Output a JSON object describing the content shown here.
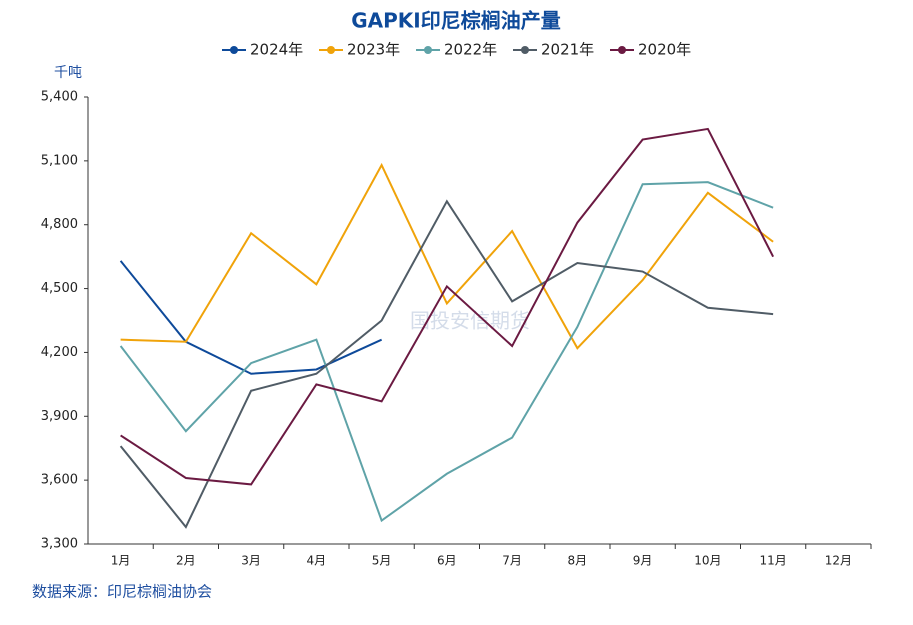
{
  "chart_data": {
    "type": "line",
    "title": "GAPKI印尼棕榈油产量",
    "y_unit": "千吨",
    "source": "数据来源：印尼棕榈油协会",
    "watermark": "国投安信期货",
    "categories": [
      "1月",
      "2月",
      "3月",
      "4月",
      "5月",
      "6月",
      "7月",
      "8月",
      "9月",
      "10月",
      "11月",
      "12月"
    ],
    "series": [
      {
        "name": "2024年",
        "color": "#0e4a9a",
        "values": [
          4630,
          4250,
          4100,
          4120,
          4260,
          null,
          null,
          null,
          null,
          null,
          null,
          null
        ]
      },
      {
        "name": "2023年",
        "color": "#f0a30a",
        "values": [
          4260,
          4250,
          4760,
          4520,
          5080,
          4430,
          4770,
          4220,
          4540,
          4950,
          4720,
          null
        ]
      },
      {
        "name": "2022年",
        "color": "#5fa3a8",
        "values": [
          4230,
          3830,
          4150,
          4260,
          3410,
          3630,
          3800,
          4320,
          4990,
          5000,
          4880,
          null
        ]
      },
      {
        "name": "2021年",
        "color": "#505c66",
        "values": [
          3760,
          3380,
          4020,
          4100,
          4350,
          4910,
          4440,
          4620,
          4580,
          4410,
          4380,
          null
        ]
      },
      {
        "name": "2020年",
        "color": "#6b1a42",
        "values": [
          3810,
          3610,
          3580,
          4050,
          3970,
          4510,
          4230,
          4810,
          5200,
          5250,
          4650,
          null
        ]
      }
    ],
    "ylim": [
      3300,
      5400
    ],
    "yticks": [
      {
        "value": 3300,
        "label": "3,300"
      },
      {
        "value": 3600,
        "label": "3,600"
      },
      {
        "value": 3900,
        "label": "3,900"
      },
      {
        "value": 4200,
        "label": "4,200"
      },
      {
        "value": 4500,
        "label": "4,500"
      },
      {
        "value": 4800,
        "label": "4,800"
      },
      {
        "value": 5100,
        "label": "5,100"
      },
      {
        "value": 5400,
        "label": "5,400"
      }
    ],
    "grid": false,
    "legend": "top"
  }
}
